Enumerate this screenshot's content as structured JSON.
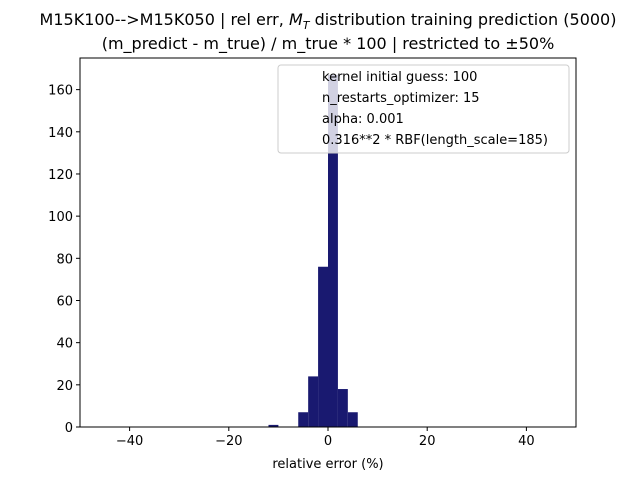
{
  "chart_data": {
    "type": "bar",
    "title_prefix": "M15K100-->M15K050 | rel err, ",
    "title_symbol": "M",
    "title_subscript": "T",
    "title_suffix": " distribution training prediction (5000)",
    "subtitle": "(m_predict - m_true) / m_true * 100 | restricted to ±50%",
    "xlabel": "relative error (%)",
    "ylabel": "",
    "xlim": [
      -50,
      50
    ],
    "ylim": [
      0,
      175
    ],
    "xticks": [
      -40,
      -20,
      0,
      20,
      40
    ],
    "xtick_labels": [
      "−40",
      "−20",
      "0",
      "20",
      "40"
    ],
    "yticks": [
      0,
      20,
      40,
      60,
      80,
      100,
      120,
      140,
      160
    ],
    "ytick_labels": [
      "0",
      "20",
      "40",
      "60",
      "80",
      "100",
      "120",
      "140",
      "160"
    ],
    "bin_width": 2,
    "bins": [
      {
        "x0": -12,
        "x1": -10,
        "value": 1
      },
      {
        "x0": -6,
        "x1": -4,
        "value": 7
      },
      {
        "x0": -4,
        "x1": -2,
        "value": 24
      },
      {
        "x0": -2,
        "x1": 0,
        "value": 76
      },
      {
        "x0": 0,
        "x1": 2,
        "value": 167
      },
      {
        "x0": 2,
        "x1": 4,
        "value": 18
      },
      {
        "x0": 4,
        "x1": 6,
        "value": 7
      }
    ],
    "bar_color": "#191970",
    "grid": false,
    "legend_position": "top-right",
    "legend_entries": [
      "kernel initial guess: 100",
      "n_restarts_optimizer: 15",
      "alpha: 0.001",
      "0.316**2 * RBF(length_scale=185)"
    ]
  }
}
